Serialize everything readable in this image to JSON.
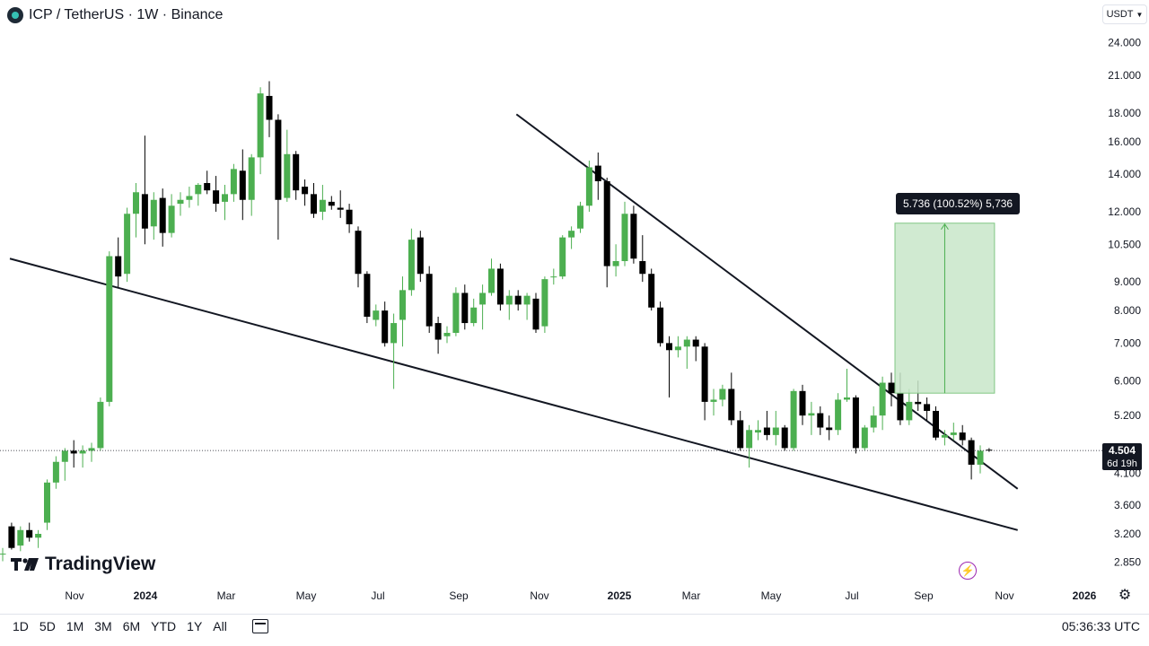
{
  "header": {
    "symbol": "ICP",
    "title": "ICP / TetherUS · 1W · Binance"
  },
  "currency_button": "USDT",
  "branding": "TradingView",
  "timeframes": [
    "1D",
    "5D",
    "1M",
    "3M",
    "6M",
    "YTD",
    "1Y",
    "All"
  ],
  "clock": "05:36:33 UTC",
  "last_price": {
    "value": "4.504",
    "countdown": "6d 19h"
  },
  "measure_label": "5.736 (100.52%) 5,736",
  "icons": {
    "logo": "tradingview-logo-icon",
    "symbol": "icp-coin-icon",
    "settings": "gear-icon",
    "calendar": "calendar-range-icon",
    "alert": "lightning-icon"
  },
  "colors": {
    "up": "#4caf50",
    "down": "#000000",
    "measure_fill": "#c8e6c9",
    "trendline": "#131722"
  },
  "chart_data": {
    "type": "candlestick",
    "scale": "log",
    "y_ticks": [
      "24.000",
      "21.000",
      "18.000",
      "16.000",
      "14.000",
      "12.000",
      "10.500",
      "9.000",
      "8.000",
      "7.000",
      "6.000",
      "5.200",
      "4.100",
      "3.600",
      "3.200",
      "2.850"
    ],
    "y_tick_values": [
      24,
      21,
      18,
      16,
      14,
      12,
      10.5,
      9,
      8,
      7,
      6,
      5.2,
      4.1,
      3.6,
      3.2,
      2.85
    ],
    "x_labels": [
      "Nov",
      "2024",
      "Mar",
      "May",
      "Jul",
      "Sep",
      "Nov",
      "2025",
      "Mar",
      "May",
      "Jul",
      "Sep",
      "Nov",
      "2026"
    ],
    "ohlc": [
      [
        2.95,
        3.02,
        2.86,
        2.95
      ],
      [
        3.3,
        3.35,
        3.0,
        3.02
      ],
      [
        3.05,
        3.3,
        2.98,
        3.25
      ],
      [
        3.25,
        3.35,
        3.1,
        3.15
      ],
      [
        3.15,
        3.25,
        3.02,
        3.2
      ],
      [
        3.35,
        4.0,
        3.25,
        3.95
      ],
      [
        3.95,
        4.4,
        3.85,
        4.3
      ],
      [
        4.3,
        4.55,
        3.98,
        4.5
      ],
      [
        4.5,
        4.7,
        4.2,
        4.45
      ],
      [
        4.45,
        4.6,
        4.2,
        4.5
      ],
      [
        4.5,
        4.65,
        4.3,
        4.55
      ],
      [
        4.55,
        5.6,
        4.5,
        5.5
      ],
      [
        5.5,
        10.2,
        5.4,
        10.0
      ],
      [
        10.0,
        10.8,
        8.8,
        9.2
      ],
      [
        9.3,
        12.2,
        9.0,
        11.9
      ],
      [
        11.9,
        13.5,
        10.8,
        13.0
      ],
      [
        12.9,
        16.4,
        10.5,
        11.2
      ],
      [
        11.3,
        13.0,
        10.7,
        12.6
      ],
      [
        12.7,
        13.2,
        10.4,
        11.0
      ],
      [
        11.0,
        12.9,
        10.8,
        12.3
      ],
      [
        12.4,
        13.0,
        11.8,
        12.6
      ],
      [
        12.6,
        13.3,
        12.2,
        12.8
      ],
      [
        12.9,
        13.5,
        12.3,
        13.4
      ],
      [
        13.5,
        14.2,
        12.9,
        13.1
      ],
      [
        13.1,
        13.9,
        12.0,
        12.4
      ],
      [
        12.5,
        13.4,
        11.6,
        12.9
      ],
      [
        12.9,
        14.6,
        12.5,
        14.3
      ],
      [
        14.2,
        15.5,
        11.6,
        12.6
      ],
      [
        12.6,
        15.2,
        11.8,
        15.0
      ],
      [
        15.0,
        20.0,
        14.0,
        19.5
      ],
      [
        19.3,
        20.5,
        16.3,
        17.5
      ],
      [
        17.5,
        17.9,
        10.7,
        12.6
      ],
      [
        12.7,
        16.8,
        12.5,
        15.2
      ],
      [
        15.2,
        15.4,
        12.6,
        13.1
      ],
      [
        13.3,
        13.7,
        12.3,
        12.9
      ],
      [
        12.9,
        13.5,
        11.7,
        11.9
      ],
      [
        12.0,
        13.4,
        11.6,
        12.6
      ],
      [
        12.5,
        12.8,
        12.1,
        12.3
      ],
      [
        12.2,
        13.1,
        11.7,
        12.1
      ],
      [
        12.1,
        12.4,
        11.0,
        11.4
      ],
      [
        11.1,
        11.3,
        8.8,
        9.3
      ],
      [
        9.3,
        9.4,
        7.6,
        7.8
      ],
      [
        7.7,
        8.2,
        7.5,
        8.0
      ],
      [
        8.0,
        8.3,
        6.9,
        7.0
      ],
      [
        7.0,
        7.9,
        5.8,
        7.6
      ],
      [
        7.7,
        9.2,
        6.9,
        8.7
      ],
      [
        8.7,
        11.2,
        8.5,
        10.7
      ],
      [
        10.8,
        11.1,
        9.0,
        9.3
      ],
      [
        9.3,
        9.6,
        7.3,
        7.5
      ],
      [
        7.6,
        7.8,
        6.7,
        7.1
      ],
      [
        7.2,
        7.5,
        7.0,
        7.3
      ],
      [
        7.3,
        8.8,
        7.2,
        8.6
      ],
      [
        8.6,
        8.9,
        7.4,
        7.6
      ],
      [
        7.6,
        8.4,
        7.5,
        8.1
      ],
      [
        8.2,
        8.9,
        7.4,
        8.6
      ],
      [
        8.6,
        9.9,
        8.5,
        9.5
      ],
      [
        9.5,
        9.7,
        8.0,
        8.2
      ],
      [
        8.2,
        8.7,
        7.7,
        8.5
      ],
      [
        8.5,
        8.7,
        8.0,
        8.2
      ],
      [
        8.2,
        8.6,
        7.7,
        8.5
      ],
      [
        8.4,
        8.6,
        7.3,
        7.4
      ],
      [
        7.5,
        9.2,
        7.3,
        9.1
      ],
      [
        9.2,
        9.5,
        8.9,
        9.2
      ],
      [
        9.2,
        10.9,
        9.1,
        10.8
      ],
      [
        10.8,
        11.3,
        10.3,
        11.1
      ],
      [
        11.2,
        12.5,
        11.0,
        12.3
      ],
      [
        12.3,
        14.8,
        12.0,
        14.4
      ],
      [
        14.5,
        15.3,
        12.6,
        13.6
      ],
      [
        13.6,
        13.8,
        8.8,
        9.6
      ],
      [
        9.6,
        10.5,
        9.2,
        9.8
      ],
      [
        9.8,
        12.5,
        9.6,
        11.9
      ],
      [
        11.9,
        12.3,
        9.7,
        9.9
      ],
      [
        9.8,
        10.9,
        9.0,
        9.3
      ],
      [
        9.3,
        9.5,
        8.0,
        8.1
      ],
      [
        8.1,
        8.3,
        6.9,
        7.0
      ],
      [
        7.0,
        7.2,
        5.6,
        6.8
      ],
      [
        6.8,
        7.2,
        6.6,
        6.9
      ],
      [
        6.9,
        7.2,
        6.3,
        7.1
      ],
      [
        7.1,
        7.2,
        6.5,
        6.9
      ],
      [
        6.9,
        7.0,
        5.1,
        5.5
      ],
      [
        5.5,
        5.8,
        5.2,
        5.55
      ],
      [
        5.55,
        5.9,
        5.4,
        5.8
      ],
      [
        5.8,
        6.2,
        5.0,
        5.1
      ],
      [
        5.1,
        5.3,
        4.5,
        4.55
      ],
      [
        4.55,
        5.0,
        4.2,
        4.9
      ],
      [
        4.85,
        5.1,
        4.7,
        4.9
      ],
      [
        4.95,
        5.3,
        4.7,
        4.8
      ],
      [
        4.8,
        5.3,
        4.6,
        4.95
      ],
      [
        4.95,
        5.0,
        4.5,
        4.55
      ],
      [
        4.55,
        5.8,
        4.5,
        5.75
      ],
      [
        5.75,
        5.9,
        5.0,
        5.2
      ],
      [
        5.2,
        5.5,
        4.8,
        5.25
      ],
      [
        5.25,
        5.4,
        4.8,
        4.95
      ],
      [
        4.95,
        5.2,
        4.7,
        4.9
      ],
      [
        4.9,
        5.7,
        4.8,
        5.55
      ],
      [
        5.55,
        6.3,
        5.5,
        5.6
      ],
      [
        5.6,
        5.65,
        4.45,
        4.55
      ],
      [
        4.55,
        5.0,
        4.5,
        4.95
      ],
      [
        4.95,
        5.4,
        4.85,
        5.2
      ],
      [
        5.2,
        6.1,
        4.9,
        5.95
      ],
      [
        5.95,
        6.2,
        5.4,
        5.7
      ],
      [
        5.7,
        6.2,
        5.0,
        5.1
      ],
      [
        5.1,
        5.8,
        5.0,
        5.5
      ],
      [
        5.5,
        6.0,
        5.3,
        5.45
      ],
      [
        5.45,
        5.6,
        5.1,
        5.3
      ],
      [
        5.3,
        5.4,
        4.7,
        4.75
      ],
      [
        4.75,
        4.9,
        4.6,
        4.8
      ],
      [
        4.8,
        5.05,
        4.7,
        4.85
      ],
      [
        4.85,
        5.0,
        4.6,
        4.7
      ],
      [
        4.7,
        4.75,
        4.0,
        4.25
      ],
      [
        4.25,
        4.6,
        4.1,
        4.5
      ],
      [
        4.52,
        4.55,
        4.48,
        4.504
      ]
    ],
    "trendlines": [
      {
        "from": [
          0,
          9.9
        ],
        "to": [
          113,
          3.25
        ]
      },
      {
        "from": [
          57,
          17.9
        ],
        "to": [
          113,
          3.85
        ]
      }
    ],
    "measure": {
      "from_bar": 100,
      "to_bar": 111,
      "low": 5.7,
      "high": 11.45
    },
    "last_price": 4.504
  }
}
